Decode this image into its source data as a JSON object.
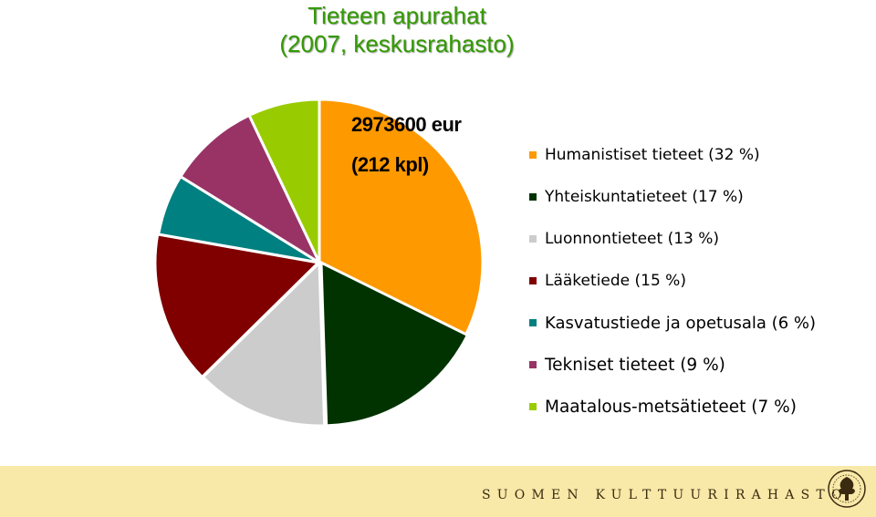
{
  "title": {
    "line1": "Tieteen apurahat",
    "line2": "(2007, keskusrahasto)"
  },
  "summary": {
    "amount": "2973600 eur",
    "count": "(212 kpl)"
  },
  "chart_data": {
    "type": "pie",
    "title": "Tieteen apurahat (2007, keskusrahasto)",
    "slices": [
      {
        "label": "Humanistiset tieteet (32 %)",
        "value": 32,
        "color": "#ff9900"
      },
      {
        "label": "Yhteiskuntatieteet (17 %)",
        "value": 17,
        "color": "#003300"
      },
      {
        "label": "Luonnontieteet (13 %)",
        "value": 13,
        "color": "#cccccc"
      },
      {
        "label": "Lääketiede (15 %)",
        "value": 15,
        "color": "#800000"
      },
      {
        "label": "Kasvatustiede ja opetusala (6 %)",
        "value": 6,
        "color": "#008080"
      },
      {
        "label": "Tekniset tieteet (9 %)",
        "value": 9,
        "color": "#993366"
      },
      {
        "label": "Maatalous-metsätieteet (7 %)",
        "value": 7,
        "color": "#99cc00"
      }
    ],
    "legend": "right"
  },
  "footer": {
    "organization": "SUOMEN KULTTUURIRAHASTO",
    "seal_icon": "foundation-tree-seal-icon"
  }
}
